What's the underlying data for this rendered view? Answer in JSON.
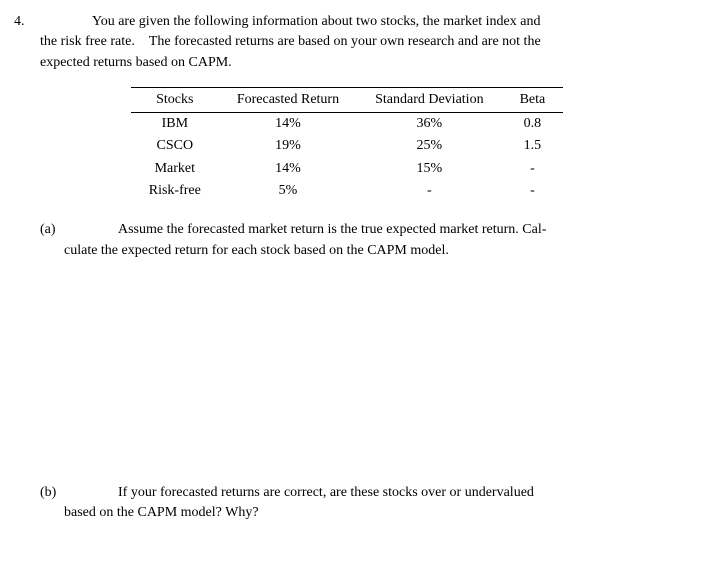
{
  "problem": {
    "number": "4.",
    "intro_line1": "You are given the following information about two stocks, the market index and",
    "intro_line2": "the risk free rate. The forecasted returns are based on your own research and are not the",
    "intro_line3": "expected returns based on CAPM."
  },
  "table": {
    "headers": {
      "col1": "Stocks",
      "col2": "Forecasted Return",
      "col3": "Standard Deviation",
      "col4": "Beta"
    },
    "rows": [
      {
        "stock": "IBM",
        "forecast": "14%",
        "stddev": "36%",
        "beta": "0.8"
      },
      {
        "stock": "CSCO",
        "forecast": "19%",
        "stddev": "25%",
        "beta": "1.5"
      },
      {
        "stock": "Market",
        "forecast": "14%",
        "stddev": "15%",
        "beta": "-"
      },
      {
        "stock": "Risk-free",
        "forecast": "5%",
        "stddev": "-",
        "beta": "-"
      }
    ],
    "styling": {
      "header_border_top": "#000000",
      "header_border_bottom": "#000000",
      "font_size": 14,
      "cell_padding_h": 18
    }
  },
  "parts": {
    "a": {
      "label": "(a)",
      "line1": "Assume the forecasted market return is the true expected market return. Cal-",
      "line2": "culate the expected return for each stock based on the CAPM model."
    },
    "b": {
      "label": "(b)",
      "line1": "If your forecasted returns are correct, are these stocks over or undervalued",
      "line2": "based on the CAPM model? Why?"
    }
  },
  "colors": {
    "background": "#ffffff",
    "text": "#000000"
  }
}
